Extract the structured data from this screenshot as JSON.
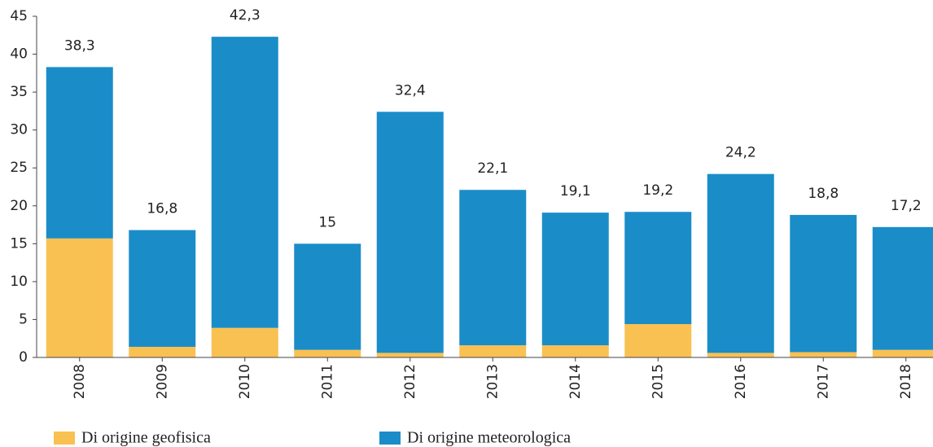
{
  "chart_data": {
    "type": "stacked_bar",
    "categories": [
      "2008",
      "2009",
      "2010",
      "2011",
      "2012",
      "2013",
      "2014",
      "2015",
      "2016",
      "2017",
      "2018"
    ],
    "series": [
      {
        "name": "Di origine geofisica",
        "color": "#f9c152",
        "values": [
          15.7,
          1.4,
          3.9,
          1.0,
          0.6,
          1.6,
          1.6,
          4.4,
          0.6,
          0.7,
          1.0
        ]
      },
      {
        "name": "Di origine meteorologica",
        "color": "#1a8dc8",
        "values": [
          22.6,
          15.4,
          38.4,
          14.0,
          31.8,
          20.5,
          17.5,
          14.8,
          23.6,
          18.1,
          16.2
        ]
      }
    ],
    "totals": [
      38.3,
      16.8,
      42.3,
      15,
      32.4,
      22.1,
      19.1,
      19.2,
      24.2,
      18.8,
      17.2
    ],
    "total_labels": [
      "38,3",
      "16,8",
      "42,3",
      "15",
      "32,4",
      "22,1",
      "19,1",
      "19,2",
      "24,2",
      "18,8",
      "17,2"
    ],
    "ylim": [
      0,
      45
    ],
    "yticks": [
      0,
      5,
      10,
      15,
      20,
      25,
      30,
      35,
      40,
      45
    ]
  }
}
